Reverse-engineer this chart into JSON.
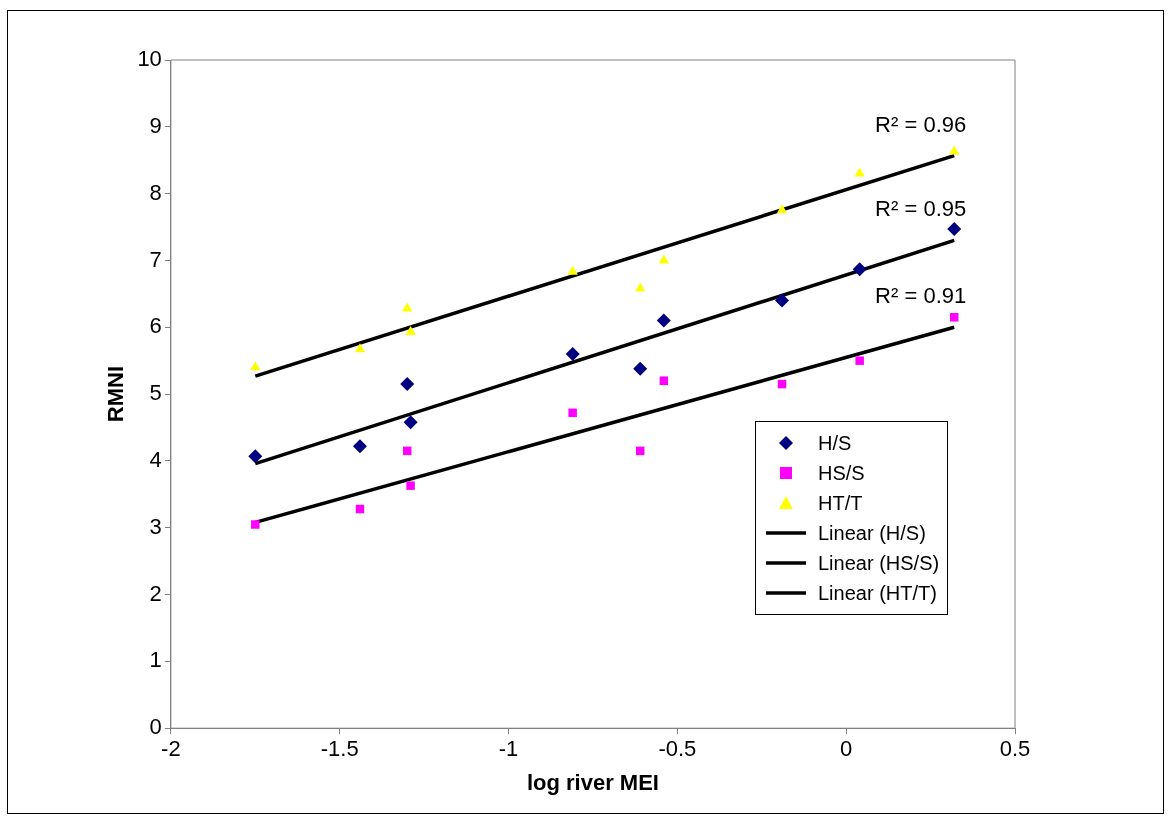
{
  "chart_data": {
    "type": "scatter",
    "xlabel": "log river MEI",
    "ylabel": "RMNI",
    "xlim": [
      -2,
      0.5
    ],
    "xticks": [
      -2,
      -1.5,
      -1,
      -0.5,
      0,
      0.5
    ],
    "ylim": [
      0,
      10
    ],
    "yticks": [
      0,
      1,
      2,
      3,
      4,
      5,
      6,
      7,
      8,
      9,
      10
    ],
    "grid": false,
    "legend": "bottom right",
    "series": [
      {
        "name": "H/S",
        "color": "#000080",
        "marker": "diamond",
        "x": [
          -1.75,
          -1.44,
          -1.3,
          -1.29,
          -0.81,
          -0.61,
          -0.54,
          -0.19,
          0.04,
          0.32
        ],
        "values": [
          4.07,
          4.22,
          5.15,
          4.58,
          5.6,
          5.38,
          6.1,
          6.4,
          6.87,
          7.47
        ]
      },
      {
        "name": "HS/S",
        "color": "#ff00ff",
        "marker": "square",
        "x": [
          -1.75,
          -1.44,
          -1.3,
          -1.29,
          -0.81,
          -0.61,
          -0.54,
          -0.19,
          0.04,
          0.32
        ],
        "values": [
          3.05,
          3.28,
          4.15,
          3.63,
          4.72,
          4.15,
          5.2,
          5.15,
          5.5,
          6.15
        ]
      },
      {
        "name": "HT/T",
        "color": "#ffff00",
        "marker": "triangle",
        "x": [
          -1.75,
          -1.44,
          -1.3,
          -1.29,
          -0.81,
          -0.61,
          -0.54,
          -0.19,
          0.04,
          0.32
        ],
        "values": [
          5.4,
          5.67,
          6.28,
          5.93,
          6.83,
          6.58,
          7.0,
          7.75,
          8.3,
          8.63
        ]
      },
      {
        "name": "Linear (H/S)",
        "type": "line",
        "color": "#000000",
        "marker": "none",
        "x": [
          -1.75,
          0.32
        ],
        "values": [
          3.96,
          7.3
        ]
      },
      {
        "name": "Linear (HS/S)",
        "type": "line",
        "color": "#000000",
        "marker": "none",
        "x": [
          -1.75,
          0.32
        ],
        "values": [
          3.08,
          6.0
        ]
      },
      {
        "name": "Linear (HT/T)",
        "type": "line",
        "color": "#000000",
        "marker": "none",
        "x": [
          -1.75,
          0.32
        ],
        "values": [
          5.27,
          8.57
        ]
      }
    ],
    "annotations": [
      "R² = 0.96",
      "R² = 0.95",
      "R² = 0.91"
    ]
  }
}
